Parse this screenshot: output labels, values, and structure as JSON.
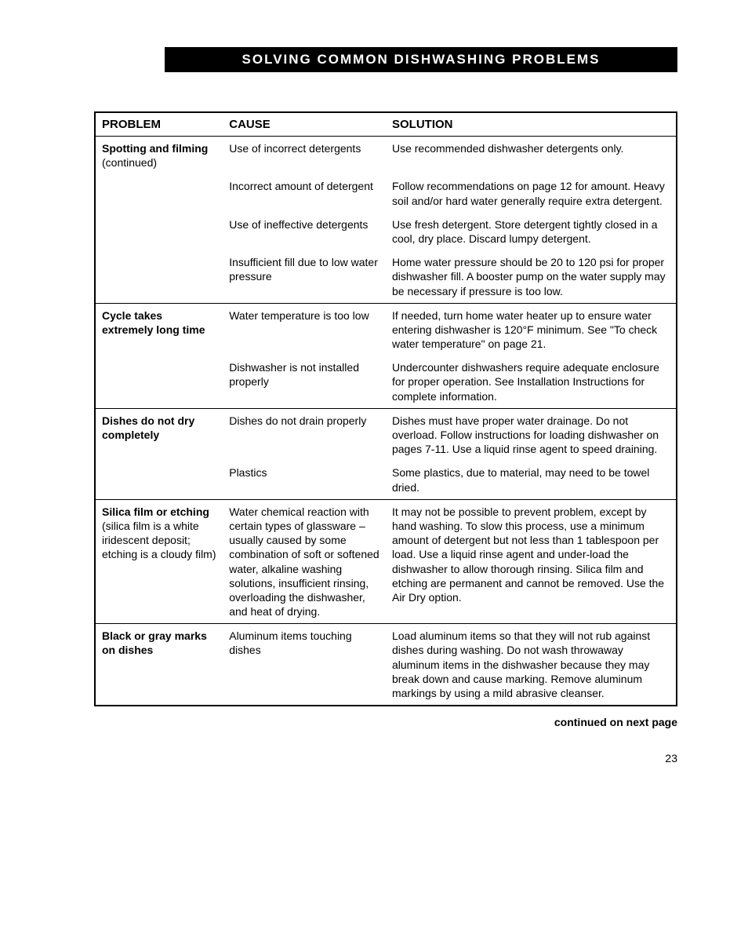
{
  "header": "SOLVING COMMON DISHWASHING PROBLEMS",
  "columns": {
    "problem": "PROBLEM",
    "cause": "CAUSE",
    "solution": "SOLUTION"
  },
  "rows": [
    {
      "section_top": true,
      "problem_bold": "Spotting and filming",
      "problem_sub": "(continued)",
      "cause": "Use of incorrect detergents",
      "solution": "Use recommended dishwasher detergents only."
    },
    {
      "section_top": false,
      "problem_bold": "",
      "problem_sub": "",
      "cause": "Incorrect amount of detergent",
      "solution": "Follow recommendations on page 12 for amount. Heavy soil and/or hard water generally require extra detergent."
    },
    {
      "section_top": false,
      "problem_bold": "",
      "problem_sub": "",
      "cause": "Use of ineffective detergents",
      "solution": "Use fresh detergent. Store detergent tightly closed in a cool, dry place. Discard lumpy detergent."
    },
    {
      "section_top": false,
      "problem_bold": "",
      "problem_sub": "",
      "cause": "Insufficient fill due to low water pressure",
      "solution": "Home water pressure should be 20 to 120 psi for proper dishwasher fill. A booster pump on the water supply may be necessary if pressure is too low."
    },
    {
      "section_top": true,
      "problem_bold": "Cycle takes extremely long time",
      "problem_sub": "",
      "cause": "Water temperature is too low",
      "solution": "If needed, turn home water heater up to ensure water entering dishwasher is 120°F minimum. See \"To check water temperature\" on page 21."
    },
    {
      "section_top": false,
      "problem_bold": "",
      "problem_sub": "",
      "cause": "Dishwasher is not installed properly",
      "solution": "Undercounter dishwashers require adequate enclosure for proper operation. See Installation Instructions for complete information."
    },
    {
      "section_top": true,
      "problem_bold": "Dishes do not dry completely",
      "problem_sub": "",
      "cause": "Dishes do not drain properly",
      "solution": "Dishes must have proper water drainage. Do not overload. Follow instructions for loading dishwasher on pages 7-11. Use a liquid rinse agent to speed draining."
    },
    {
      "section_top": false,
      "problem_bold": "",
      "problem_sub": "",
      "cause": "Plastics",
      "solution": "Some plastics, due to material, may need to be towel dried."
    },
    {
      "section_top": true,
      "problem_bold": "Silica film or etching",
      "problem_sub": "(silica film is a white iridescent deposit; etching is a cloudy film)",
      "cause": "Water chemical reaction with certain types of glassware – usually caused by some combination of soft or softened water, alkaline washing solutions, insufficient rinsing, overloading the dishwasher, and heat of drying.",
      "solution": "It may not be possible to prevent problem, except by hand washing. To slow this process, use a minimum amount of detergent but not less than 1 tablespoon per load. Use a liquid rinse agent and under-load the dishwasher to allow thorough rinsing. Silica film and etching are permanent and cannot be removed. Use the Air Dry option."
    },
    {
      "section_top": true,
      "problem_bold": "Black or gray marks on dishes",
      "problem_sub": "",
      "cause": "Aluminum items touching dishes",
      "solution": "Load aluminum items so that they will not rub against dishes during washing. Do not wash throwaway aluminum items in the dishwasher because they may break down and cause marking. Remove aluminum markings by using a mild abrasive cleanser."
    }
  ],
  "footer_note": "continued on next page",
  "page_number": "23"
}
